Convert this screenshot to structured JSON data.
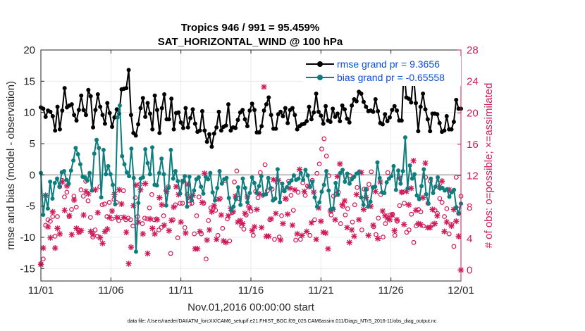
{
  "chart_data": {
    "type": "line",
    "title_line1": "Tropics 946 / 991 = 95.459%",
    "title_line2": "SAT_HORIZONTAL_WIND @ 100 hPa",
    "xlabel": "Nov.01,2016 00:00:00 start",
    "ylabel_left": "rmse and bias (model - observation)",
    "ylabel_right": "# of obs: o=possible; ×=assimilated",
    "footer": "data file: /Users/raeder/DAI/ATM_forcXX/CAM6_setup/f.e21.FHIST_BGC.f09_025.CAM6assim.011/Diags_NTrS_2016-11/obs_diag_output.nc",
    "xlim": [
      0,
      30
    ],
    "ylim_left": [
      -17,
      20
    ],
    "ylim_right": [
      -1.4,
      28
    ],
    "x_ticks": [
      0,
      5,
      10,
      15,
      20,
      25,
      30
    ],
    "x_tick_labels": [
      "11/01",
      "11/06",
      "11/11",
      "11/16",
      "11/21",
      "11/26",
      "12/01"
    ],
    "y_ticks_left": [
      -15,
      -10,
      -5,
      0,
      5,
      10,
      15,
      20
    ],
    "y_ticks_right": [
      0,
      4,
      8,
      12,
      16,
      20,
      24,
      28
    ],
    "colors": {
      "rmse": "#000000",
      "bias": "#0d7d7d",
      "obs": "#d21a5a",
      "zero_line": "#bdbdbd",
      "legend_text": "#0b4fd9"
    },
    "legend": [
      {
        "name": "rmse",
        "label": "rmse grand pr = 9.3656"
      },
      {
        "name": "bias",
        "label": "bias grand pr = -0.65558"
      }
    ],
    "series": [
      {
        "name": "rmse",
        "values": [
          10.8,
          10.6,
          9.3,
          10.3,
          10.1,
          9.4,
          7.1,
          10.9,
          7.3,
          10.3,
          13.9,
          10.8,
          11.1,
          11.3,
          9.6,
          8.7,
          10.4,
          12.7,
          10.4,
          9.6,
          13.6,
          12.6,
          7.6,
          10.4,
          12.9,
          10.9,
          9.6,
          8.2,
          11.5,
          9.9,
          7.7,
          9.2,
          10.5,
          9.8,
          13.7,
          13.8,
          13.9,
          16.8,
          9.6,
          6.7,
          6.3,
          8.1,
          10.7,
          12.3,
          9.3,
          11.5,
          9.8,
          7.3,
          12.7,
          10.4,
          6.7,
          10.7,
          12.9,
          8.9,
          8.9,
          12.2,
          7.3,
          9.9,
          10.0,
          8.4,
          7.5,
          10.7,
          7.6,
          9.1,
          10.5,
          8.2,
          6.9,
          7.1,
          10.2,
          7.1,
          5.3,
          6.5,
          4.5,
          6.6,
          7.6,
          10.1,
          7.1,
          7.7,
          7.9,
          11.3,
          7.1,
          7.6,
          7.5,
          8.8,
          10.0,
          10.4,
          8.9,
          7.8,
          10.3,
          11.4,
          10.4,
          6.8,
          6.8,
          7.8,
          10.3,
          11.3,
          12.4,
          9.6,
          7.4,
          7.4,
          9.7,
          10.1,
          9.4,
          10.7,
          8.3,
          10.4,
          10.7,
          9.6,
          7.3,
          7.8,
          8.1,
          8.2,
          8.6,
          10.9,
          8.9,
          10.0,
          13.0,
          10.1,
          9.5,
          8.2,
          11.0,
          8.7,
          8.5,
          10.6,
          9.3,
          9.8,
          8.6,
          11.1,
          10.5,
          9.0,
          8.4,
          11.1,
          12.1,
          11.8,
          13.3,
          13.0,
          11.7,
          10.9,
          10.2,
          10.3,
          10.1,
          12.1,
          10.2,
          8.3,
          8.1,
          9.7,
          8.6,
          9.2,
          10.4,
          11.0,
          10.3,
          8.7,
          8.7,
          17.0,
          12.4,
          12.2,
          11.6,
          16.1,
          11.5,
          7.0,
          10.9,
          13.0,
          10.5,
          8.9,
          7.0,
          9.8,
          9.8,
          9.7,
          8.3,
          6.9,
          7.1,
          9.4,
          7.3,
          7.3,
          8.5,
          12.0,
          10.6,
          10.6
        ]
      },
      {
        "name": "bias",
        "values": [
          0.3,
          -6.4,
          -3.3,
          -5.4,
          -1.1,
          -3.8,
          -1.3,
          -0.6,
          -1.9,
          0.4,
          0.6,
          -0.8,
          -1.4,
          0.7,
          2.3,
          4.3,
          3.3,
          1.7,
          -0.3,
          -0.4,
          -0.9,
          0.3,
          -2.5,
          3.4,
          5.6,
          4.3,
          -3.6,
          4.0,
          0.1,
          1.4,
          0.1,
          -1.6,
          -4.7,
          9.2,
          11.1,
          3.0,
          1.7,
          0.4,
          -0.2,
          4.2,
          -0.5,
          -12.3,
          -4.5,
          -0.6,
          -0.4,
          4.1,
          1.9,
          0.1,
          4.4,
          -1.6,
          -1.7,
          0.3,
          2.6,
          0.1,
          -4.9,
          -2.1,
          4.0,
          -0.6,
          0.6,
          -1.0,
          -3.0,
          -1.0,
          -0.2,
          -5.1,
          -0.3,
          -4.1,
          -2.5,
          -0.7,
          -0.4,
          -1.9,
          -3.0,
          -0.3,
          -0.7,
          0.3,
          -2.8,
          -4.1,
          -2.1,
          0.6,
          -1.4,
          -0.7,
          -0.5,
          -3.7,
          -5.7,
          -5.1,
          -3.9,
          -2.0,
          -4.8,
          -0.6,
          -2.1,
          -4.4,
          -2.9,
          -0.4,
          -1.3,
          -2.9,
          -1.8,
          -0.2,
          -3.2,
          -3.1,
          -0.5,
          -2.1,
          -4.1,
          -3.8,
          0.9,
          -4.4,
          -1.4,
          -2.6,
          -2.0,
          -1.3,
          -0.9,
          -0.1,
          -0.8,
          -0.6,
          0.3,
          -0.8,
          0.8,
          -0.1,
          -1.9,
          -1.1,
          -3.6,
          -5.1,
          -4.4,
          -2.7,
          -1.6,
          0.6,
          -2.5,
          -5.5,
          -5.4,
          -1.3,
          -3.2,
          0.3,
          0.8,
          -1.1,
          0.2,
          -1.4,
          -0.7,
          -0.3,
          0.2,
          0.4,
          -3.6,
          -4.8,
          -2.3,
          -5.1,
          -4.3,
          -2.0,
          -1.9,
          2.0,
          -0.5,
          -2.8,
          -2.9,
          -1.2,
          -0.6,
          -0.2,
          1.4,
          -2.4,
          0.7,
          -1.4,
          0.6,
          6.0,
          -2.2,
          1.5,
          -0.6,
          0.1,
          -3.3,
          -3.9,
          -1.8,
          0.9,
          -3.1,
          -4.6,
          -0.6,
          -2.9,
          -1.9,
          -0.4,
          -2.2,
          -2.1,
          -2.5,
          -2.3,
          -3.5,
          -2.8,
          -2.4,
          -5.2,
          -6.1,
          -4.6
        ]
      },
      {
        "name": "obs_possible",
        "axis": "right",
        "values": [
          0.8,
          1.4,
          5.7,
          6.4,
          6.2,
          6.8,
          4.3,
          6.8,
          10.6,
          11.4,
          9.3,
          9.9,
          6.8,
          7.7,
          9.4,
          8.0,
          5.1,
          10.2,
          9.4,
          11.3,
          8.8,
          6.7,
          4.2,
          5.1,
          4.3,
          10.6,
          8.3,
          8.4,
          6.8,
          8.6,
          6.5,
          9.0,
          8.6,
          6.3,
          6.7,
          10.1,
          6.4,
          6.6,
          6.4,
          5.6,
          9.2,
          6.8,
          10.9,
          5.9,
          6.6,
          6.5,
          7.9,
          9.6,
          6.4,
          6.5,
          5.1,
          5.4,
          6.9,
          10.1,
          10.6,
          2.1,
          6.4,
          8.3,
          4.1,
          8.5,
          8.5,
          5.4,
          9.6,
          8.4,
          8.5,
          4.6,
          6.9,
          9.3,
          4.6,
          8.5,
          1.4,
          6.3,
          7.9,
          7.8,
          7.6,
          4.4,
          9.1,
          5.3,
          11.4,
          6.5,
          3.7,
          7.3,
          11.2,
          12.6,
          9.1,
          5.6,
          5.2,
          7.0,
          8.1,
          7.5,
          4.4,
          10.0,
          9.2,
          12.4,
          9.5,
          13.4,
          10.1,
          6.4,
          10.3,
          3.9,
          11.2,
          4.2,
          6.9,
          10.1,
          9.0,
          11.3,
          9.5,
          7.6,
          3.8,
          9.9,
          3.9,
          11.1,
          9.5,
          10.7,
          4.4,
          11.4,
          6.4,
          12.3,
          13.5,
          15.4,
          16.7,
          14.5,
          12.0,
          7.0,
          9.4,
          9.6,
          9.9,
          5.9,
          8.1,
          7.0,
          7.8,
          12.0,
          6.1,
          8.3,
          10.5,
          12.5,
          5.1,
          10.3,
          10.3,
          10.9,
          12.5,
          5.5,
          4.5,
          6.6,
          9.6,
          4.2,
          5.9,
          12.4,
          7.0,
          7.1,
          4.4,
          6.2,
          8.2,
          9.9,
          8.5,
          4.8,
          5.1,
          7.1,
          3.5,
          5.6,
          7.7,
          7.4,
          5.6,
          11.8,
          8.5,
          11.3,
          5.8,
          7.6,
          7.2,
          9.1,
          8.6,
          6.8,
          7.8,
          4.6,
          5.8,
          3.0,
          11.8,
          7.2,
          9.4
        ]
      },
      {
        "name": "obs_assimilated",
        "axis": "right",
        "values": [
          0.7,
          2.8,
          9.5,
          5.5,
          4.1,
          7.4,
          2.8,
          5.3,
          4.6,
          11.2,
          7.6,
          10.7,
          6.9,
          4.5,
          8.9,
          5.3,
          4.8,
          5.0,
          7.0,
          10.0,
          9.7,
          4.9,
          4.5,
          10.2,
          7.3,
          4.1,
          3.4,
          4.9,
          5.2,
          6.7,
          7.5,
          9.6,
          6.7,
          10.2,
          8.4,
          6.7,
          4.8,
          0.8,
          2.9,
          8.2,
          10.8,
          6.1,
          10.2,
          4.6,
          11.0,
          2.1,
          6.5,
          5.3,
          4.6,
          6.4,
          9.2,
          8.3,
          5.7,
          10.0,
          5.0,
          6.3,
          8.0,
          10.6,
          9.6,
          6.1,
          11.3,
          4.7,
          10.9,
          9.2,
          9.5,
          2.7,
          2.7,
          4.9,
          8.6,
          12.3,
          3.8,
          5.1,
          7.4,
          8.2,
          3.9,
          9.0,
          7.0,
          3.7,
          3.5,
          6.9,
          7.8,
          7.4,
          9.4,
          6.1,
          6.3,
          5.9,
          7.2,
          9.3,
          7.9,
          5.0,
          5.5,
          7.7,
          9.7,
          5.4,
          23.3,
          4.3,
          4.3,
          6.5,
          11.5,
          7.2,
          11.4,
          3.8,
          5.9,
          9.1,
          7.1,
          10.4,
          5.7,
          10.2,
          4.6,
          12.8,
          4.4,
          10.0,
          4.9,
          10.6,
          6.0,
          9.9,
          3.9,
          7.9,
          6.2,
          4.8,
          4.7,
          2.7,
          7.5,
          7.7,
          6.4,
          11.9,
          13.5,
          8.3,
          8.8,
          5.4,
          3.5,
          5.1,
          4.3,
          9.6,
          6.4,
          12.4,
          7.7,
          9.2,
          4.4,
          8.1,
          5.7,
          10.0,
          4.0,
          11.2,
          7.5,
          6.9,
          6.6,
          6.4,
          7.0,
          5.0,
          6.4,
          11.7,
          9.9,
          5.8,
          10.0,
          8.3,
          10.4,
          13.9,
          7.6,
          5.9,
          5.8,
          9.2,
          13.6,
          5.4,
          5.4,
          7.7,
          5.9,
          6.9,
          10.6,
          11.3,
          4.9,
          6.1,
          10.2,
          5.6,
          7.7,
          6.2,
          4.3,
          0.0
        ]
      }
    ]
  }
}
